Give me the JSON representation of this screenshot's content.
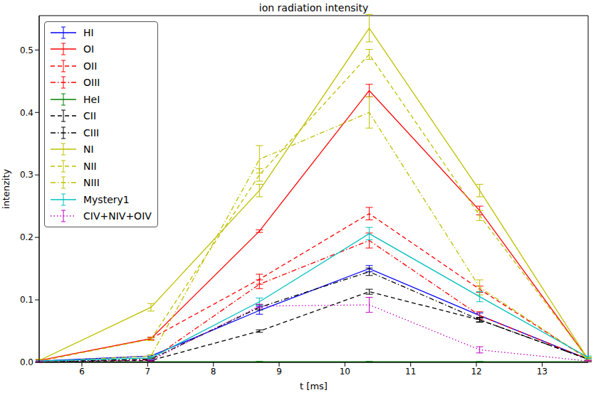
{
  "chart_data": {
    "type": "line",
    "title": "ion radiation intensity",
    "x_label": "t [ms]",
    "y_label": "intenzity",
    "x": [
      5.35,
      7.05,
      8.7,
      10.37,
      12.05,
      13.7
    ],
    "xlim": [
      5.35,
      13.7
    ],
    "xticks": [
      6,
      7,
      8,
      9,
      10,
      11,
      12,
      13
    ],
    "ylim": [
      0,
      0.555
    ],
    "yticks": [
      {
        "value": 0,
        "label": "0.0"
      },
      {
        "value": 0.1,
        "label": "0.1"
      },
      {
        "value": 0.2,
        "label": "0.2"
      },
      {
        "value": 0.3,
        "label": "0.3"
      },
      {
        "value": 0.4,
        "label": "0.4"
      },
      {
        "value": 0.5,
        "label": "0.5"
      }
    ],
    "grid": false,
    "legend": "upper left",
    "series": [
      {
        "name": "HI",
        "color": "#0000ff",
        "line_style": "solid",
        "values": [
          0.002,
          0.01,
          0.083,
          0.15,
          0.075,
          0.005
        ],
        "errors": [
          0.002,
          0.002,
          0.006,
          0.005,
          0.004,
          0.002
        ]
      },
      {
        "name": "OI",
        "color": "#ff0000",
        "line_style": "solid",
        "values": [
          0.003,
          0.038,
          0.21,
          0.435,
          0.243,
          0.005
        ],
        "errors": [
          0.001,
          0.002,
          0.002,
          0.01,
          0.007,
          0.002
        ]
      },
      {
        "name": "OII",
        "color": "#ff0000",
        "line_style": "dashed",
        "values": [
          0.002,
          0.038,
          0.133,
          0.238,
          0.117,
          0.005
        ],
        "errors": [
          0.002,
          0.002,
          0.008,
          0.01,
          0.005,
          0.002
        ]
      },
      {
        "name": "OIII",
        "color": "#ff0000",
        "line_style": "dashdot",
        "values": [
          0.001,
          0.004,
          0.125,
          0.195,
          0.075,
          0.005
        ],
        "errors": [
          0.001,
          0.002,
          0.007,
          0.012,
          0.006,
          0.002
        ]
      },
      {
        "name": "HeI",
        "color": "#008000",
        "line_style": "solid",
        "values": [
          0.001,
          0.001,
          0.001,
          0.001,
          0.001,
          0.001
        ],
        "errors": [
          0.0005,
          0.0005,
          0.0005,
          0.0005,
          0.0005,
          0.0005
        ]
      },
      {
        "name": "CII",
        "color": "#000000",
        "line_style": "dashed",
        "values": [
          0.001,
          0.003,
          0.05,
          0.113,
          0.068,
          0.005
        ],
        "errors": [
          0.001,
          0.001,
          0.002,
          0.004,
          0.003,
          0.002
        ]
      },
      {
        "name": "CIII",
        "color": "#000000",
        "line_style": "dashdot",
        "values": [
          0.001,
          0.005,
          0.088,
          0.145,
          0.068,
          0.005
        ],
        "errors": [
          0.001,
          0.002,
          0.004,
          0.006,
          0.004,
          0.002
        ]
      },
      {
        "name": "NI",
        "color": "#bfbf00",
        "line_style": "solid",
        "values": [
          0.003,
          0.088,
          0.275,
          0.535,
          0.275,
          0.005
        ],
        "errors": [
          0.002,
          0.006,
          0.01,
          0.022,
          0.01,
          0.003
        ]
      },
      {
        "name": "NII",
        "color": "#bfbf00",
        "line_style": "dashed",
        "values": [
          0.002,
          0.037,
          0.3,
          0.493,
          0.235,
          0.005
        ],
        "errors": [
          0.001,
          0.002,
          0.01,
          0.008,
          0.008,
          0.002
        ]
      },
      {
        "name": "NIII",
        "color": "#bfbf00",
        "line_style": "dashdot",
        "values": [
          0.001,
          0.01,
          0.325,
          0.4,
          0.12,
          0.005
        ],
        "errors": [
          0.001,
          0.002,
          0.022,
          0.025,
          0.012,
          0.002
        ]
      },
      {
        "name": "Mystery1",
        "color": "#00bfbf",
        "line_style": "solid",
        "values": [
          0.002,
          0.007,
          0.097,
          0.206,
          0.105,
          0.008
        ],
        "errors": [
          0.001,
          0.002,
          0.006,
          0.01,
          0.008,
          0.002
        ]
      },
      {
        "name": "CIV+NIV+OIV",
        "color": "#bf00bf",
        "line_style": "dotted",
        "values": [
          0.001,
          0.003,
          0.09,
          0.092,
          0.02,
          0.002
        ],
        "errors": [
          0.001,
          0.001,
          0.003,
          0.012,
          0.005,
          0.001
        ]
      }
    ]
  }
}
